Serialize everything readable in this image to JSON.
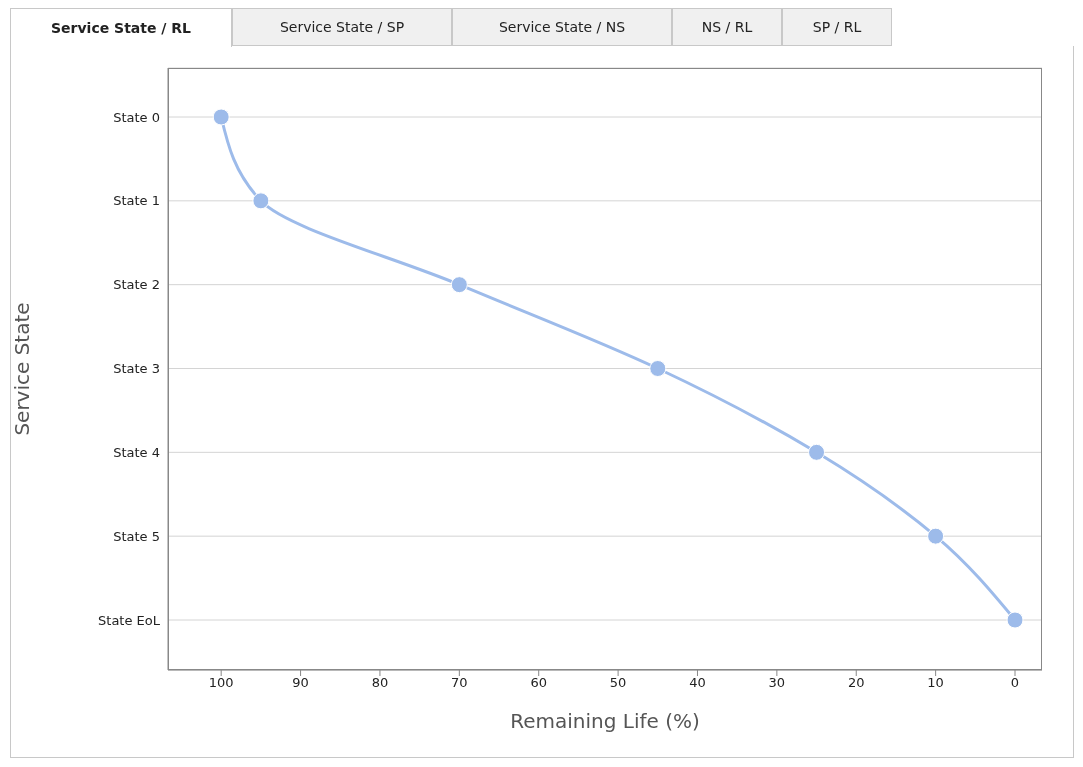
{
  "chart_data": {
    "type": "line",
    "orientation": "horizontal",
    "xlabel": "Remaining Life (%)",
    "ylabel": "Service State",
    "annotations": [
      "Service State / RL",
      "Service State / SP",
      "Service State / NS",
      "NS / RL",
      "SP / RL"
    ],
    "categories": [
      "State 0",
      "State 1",
      "State 2",
      "State 3",
      "State 4",
      "State 5",
      "State EoL"
    ],
    "series": [
      {
        "color": "#9dbbea",
        "values": [
          100,
          95,
          70,
          45,
          25,
          10,
          0
        ]
      }
    ],
    "xlim": [
      106.7,
      -3.4
    ],
    "xticks": [
      100,
      90,
      80,
      70,
      60,
      50,
      40,
      30,
      20,
      10,
      0
    ],
    "grid": "y",
    "marker": "circle",
    "line_style": "solid"
  }
}
